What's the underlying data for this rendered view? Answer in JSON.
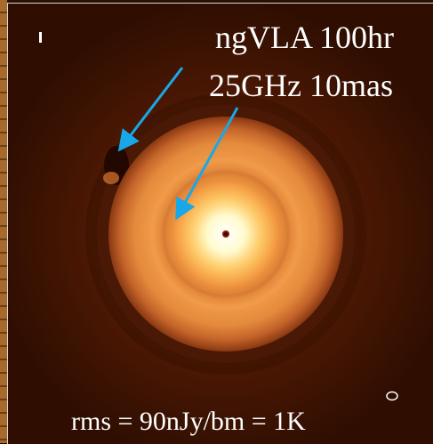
{
  "image": {
    "title_line1": "ngVLA 100hr",
    "title_line2": "25GHz 10mas",
    "rms_label": "rms = 90nJy/bm = 1K",
    "colors": {
      "background": "#4a1703",
      "outer_ring": "#c8601c",
      "inner_glow": "#ffe680",
      "arrow": "#18a8e8",
      "text": "#ffffff"
    },
    "icons": {
      "beam": "beam-ellipse-icon",
      "scale_marker": "scale-bar-icon"
    }
  }
}
